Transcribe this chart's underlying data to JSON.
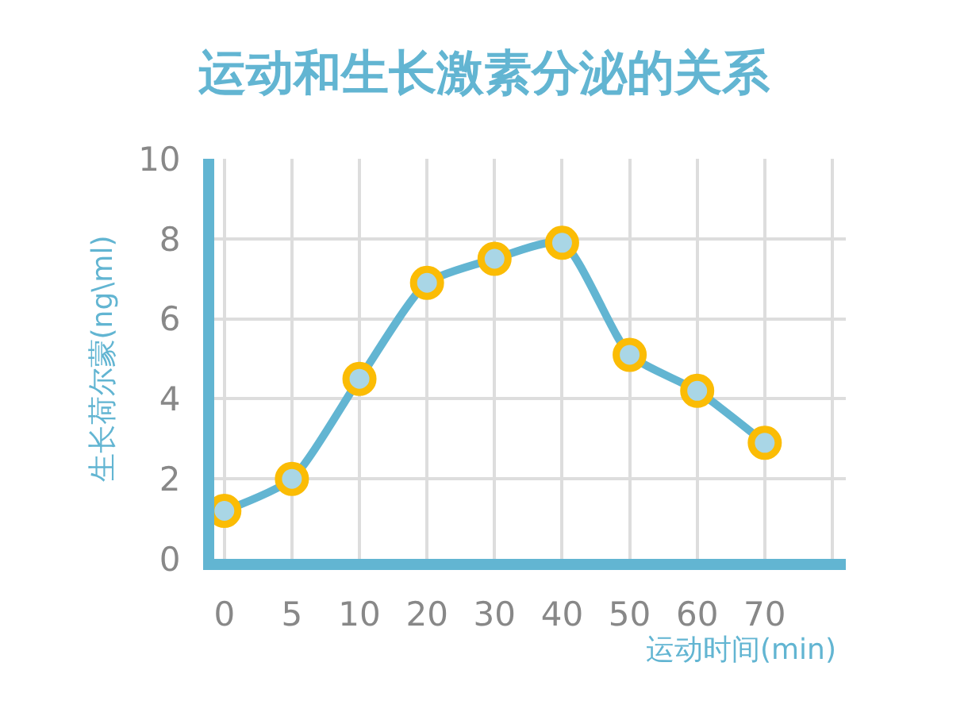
{
  "chart_data": {
    "type": "line",
    "title": "运动和生长激素分泌的关系",
    "xlabel": "运动时间(min)",
    "ylabel": "生长荷尔蒙(ng\\ml)",
    "categories": [
      "0",
      "5",
      "10",
      "20",
      "30",
      "40",
      "50",
      "60",
      "70",
      null
    ],
    "series": [
      {
        "color": "#62b5d2",
        "colors": [
          "#fbbc05",
          "#fbbc05",
          "#fbbc05",
          "#fbbc05",
          "#fbbc05",
          "#fbbc05",
          "#fbbc05",
          "#fbbc05",
          "#fbbc05",
          null
        ],
        "values": [
          1.2,
          2.0,
          4.5,
          6.9,
          7.5,
          7.9,
          5.1,
          4.2,
          2.9,
          null
        ]
      }
    ],
    "ylim": [
      0,
      10
    ],
    "yticks": [
      0,
      2,
      4,
      6,
      8,
      10
    ],
    "grid": true,
    "marker": "circle",
    "line_style": "solid"
  }
}
